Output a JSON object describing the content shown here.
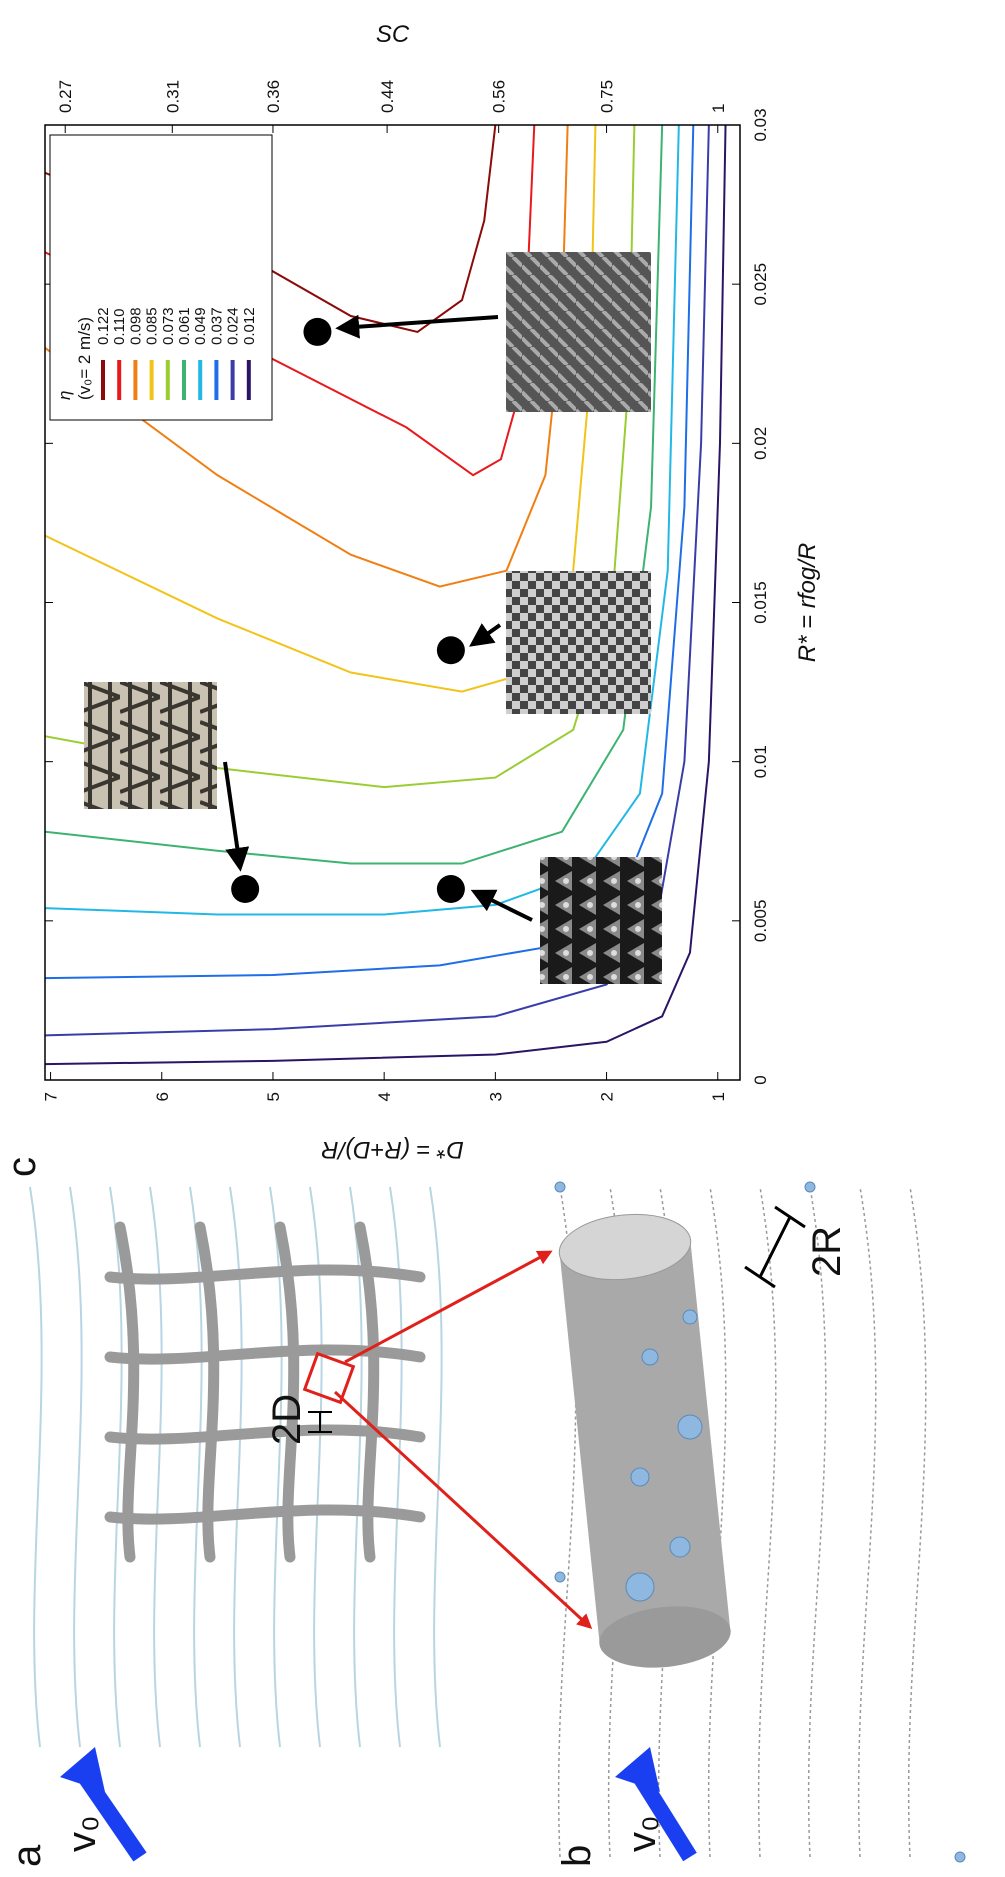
{
  "panel_labels": [
    "a",
    "b",
    "c"
  ],
  "panel_a": {
    "flow_label": "v₀",
    "spacing_label": "2D"
  },
  "panel_b": {
    "flow_label": "v₀",
    "radius_label": "2R"
  },
  "chart_data": {
    "type": "line",
    "x_label": "R* = rfog/R",
    "y_label": "D* = (R+D)/R",
    "y2_label": "SC",
    "xlim": [
      0,
      0.03
    ],
    "xticks": [
      0,
      0.005,
      0.01,
      0.015,
      0.02,
      0.025,
      0.03
    ],
    "ylim": [
      0.8,
      7.05
    ],
    "yticks": [
      1,
      2,
      3,
      4,
      5,
      6,
      7
    ],
    "y2ticks": [
      0.27,
      0.31,
      0.36,
      0.44,
      0.56,
      0.75,
      1
    ],
    "legend_title": "η",
    "legend_subtitle": "(v₀= 2 m/s)",
    "series": [
      {
        "name": "0.122",
        "color": "#8b0a0a",
        "x": [
          0.0285,
          0.026,
          0.024,
          0.0235,
          0.0245,
          0.027,
          0.03
        ],
        "values": [
          7.05,
          5.3,
          4.3,
          3.7,
          3.3,
          3.1,
          3.0
        ]
      },
      {
        "name": "0.110",
        "color": "#e8191c",
        "x": [
          0.026,
          0.023,
          0.0205,
          0.019,
          0.0195,
          0.022,
          0.026,
          0.03
        ],
        "values": [
          7.05,
          5.2,
          3.8,
          3.2,
          2.95,
          2.75,
          2.7,
          2.65
        ]
      },
      {
        "name": "0.098",
        "color": "#f07f13",
        "x": [
          0.023,
          0.019,
          0.0165,
          0.0155,
          0.016,
          0.019,
          0.024,
          0.03
        ],
        "values": [
          7.05,
          5.5,
          4.3,
          3.5,
          2.9,
          2.55,
          2.4,
          2.35
        ]
      },
      {
        "name": "0.085",
        "color": "#f2c318",
        "x": [
          0.0171,
          0.0145,
          0.0128,
          0.0122,
          0.0128,
          0.016,
          0.022,
          0.03
        ],
        "values": [
          7.05,
          5.5,
          4.3,
          3.3,
          2.7,
          2.3,
          2.15,
          2.1
        ]
      },
      {
        "name": "0.073",
        "color": "#9acd32",
        "x": [
          0.0108,
          0.0098,
          0.0092,
          0.0095,
          0.011,
          0.015,
          0.022,
          0.03
        ],
        "values": [
          7.05,
          5.5,
          4,
          3,
          2.3,
          1.95,
          1.8,
          1.75
        ]
      },
      {
        "name": "0.061",
        "color": "#3cb371",
        "x": [
          0.0078,
          0.0072,
          0.0068,
          0.0068,
          0.0078,
          0.011,
          0.018,
          0.03
        ],
        "values": [
          7.05,
          5.5,
          4.3,
          3.3,
          2.4,
          1.85,
          1.6,
          1.5
        ]
      },
      {
        "name": "0.049",
        "color": "#22b8e6",
        "x": [
          0.0054,
          0.0052,
          0.0052,
          0.0055,
          0.0065,
          0.009,
          0.016,
          0.03
        ],
        "values": [
          7.05,
          5.5,
          4,
          3,
          2.2,
          1.7,
          1.45,
          1.35
        ]
      },
      {
        "name": "0.037",
        "color": "#1e6ee8",
        "x": [
          0.0032,
          0.0033,
          0.0036,
          0.0042,
          0.0055,
          0.009,
          0.018,
          0.03
        ],
        "values": [
          7.05,
          5,
          3.5,
          2.5,
          1.9,
          1.5,
          1.3,
          1.22
        ]
      },
      {
        "name": "0.024",
        "color": "#3a3da8",
        "x": [
          0.0014,
          0.0016,
          0.002,
          0.003,
          0.005,
          0.01,
          0.02,
          0.03
        ],
        "values": [
          7.05,
          5,
          3,
          2,
          1.55,
          1.3,
          1.15,
          1.08
        ]
      },
      {
        "name": "0.012",
        "color": "#2a1466",
        "x": [
          0.0005,
          0.0006,
          0.0008,
          0.0012,
          0.002,
          0.004,
          0.01,
          0.02,
          0.03
        ],
        "values": [
          7.05,
          5,
          3,
          2,
          1.5,
          1.25,
          1.08,
          0.98,
          0.93
        ]
      }
    ],
    "markers": {
      "x": [
        0.006,
        0.006,
        0.0135,
        0.0235
      ],
      "values": [
        5.25,
        3.4,
        3.4,
        4.6
      ]
    }
  }
}
